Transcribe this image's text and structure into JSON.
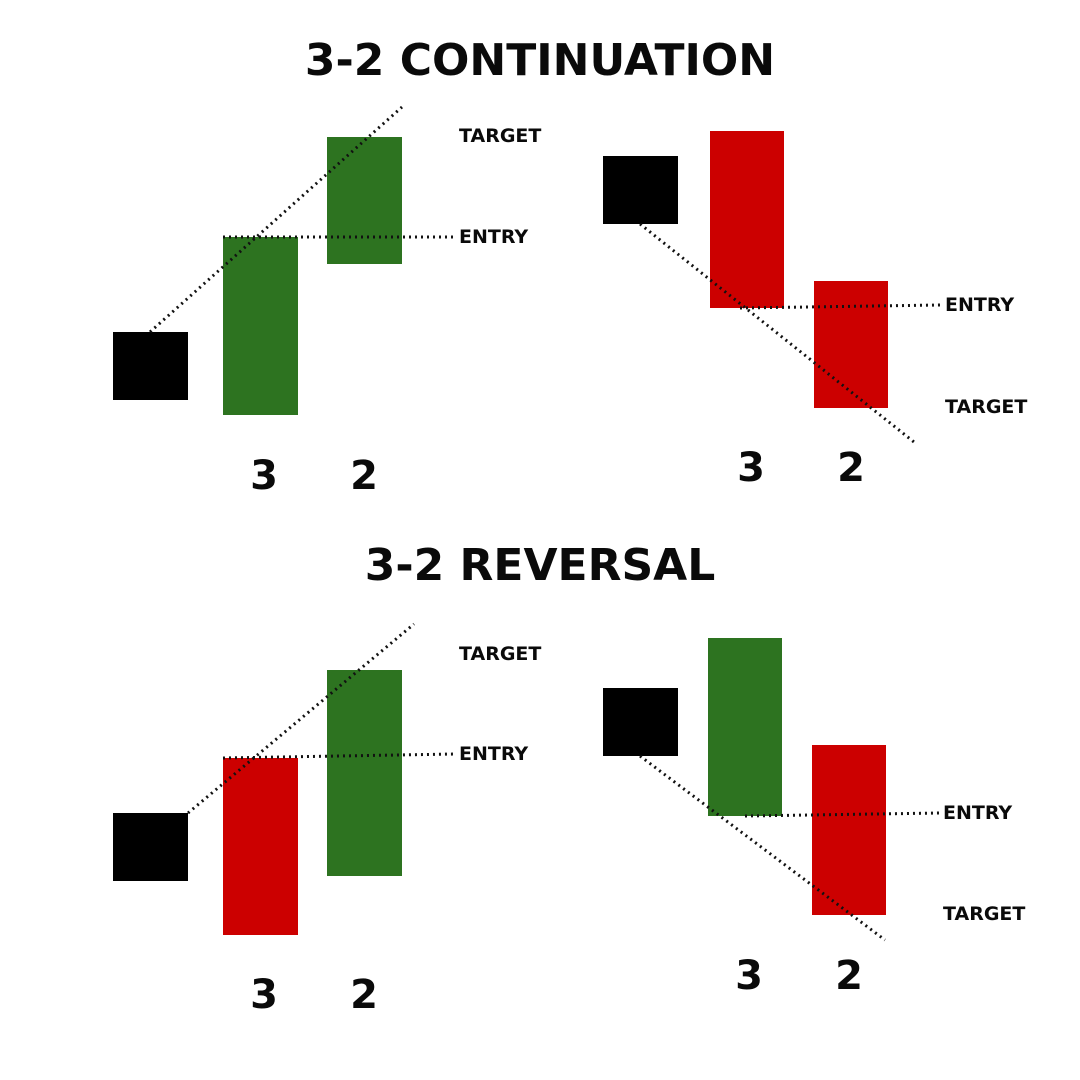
{
  "colors": {
    "bull": "#2d7320",
    "bear": "#cc0000",
    "neutral": "#000000",
    "text": "#0a0a0a"
  },
  "sections": [
    {
      "title": "3-2 CONTINUATION",
      "setups": [
        {
          "direction": "bullish",
          "candles": [
            "neutral",
            "bull",
            "bull"
          ],
          "labels": {
            "target": "TARGET",
            "entry": "ENTRY"
          },
          "numbers": [
            "3",
            "2"
          ]
        },
        {
          "direction": "bearish",
          "candles": [
            "neutral",
            "bear",
            "bear"
          ],
          "labels": {
            "entry": "ENTRY",
            "target": "TARGET"
          },
          "numbers": [
            "3",
            "2"
          ]
        }
      ]
    },
    {
      "title": "3-2 REVERSAL",
      "setups": [
        {
          "direction": "bullish",
          "candles": [
            "neutral",
            "bear",
            "bull"
          ],
          "labels": {
            "target": "TARGET",
            "entry": "ENTRY"
          },
          "numbers": [
            "3",
            "2"
          ]
        },
        {
          "direction": "bearish",
          "candles": [
            "neutral",
            "bull",
            "bear"
          ],
          "labels": {
            "entry": "ENTRY",
            "target": "TARGET"
          },
          "numbers": [
            "3",
            "2"
          ]
        }
      ]
    }
  ]
}
